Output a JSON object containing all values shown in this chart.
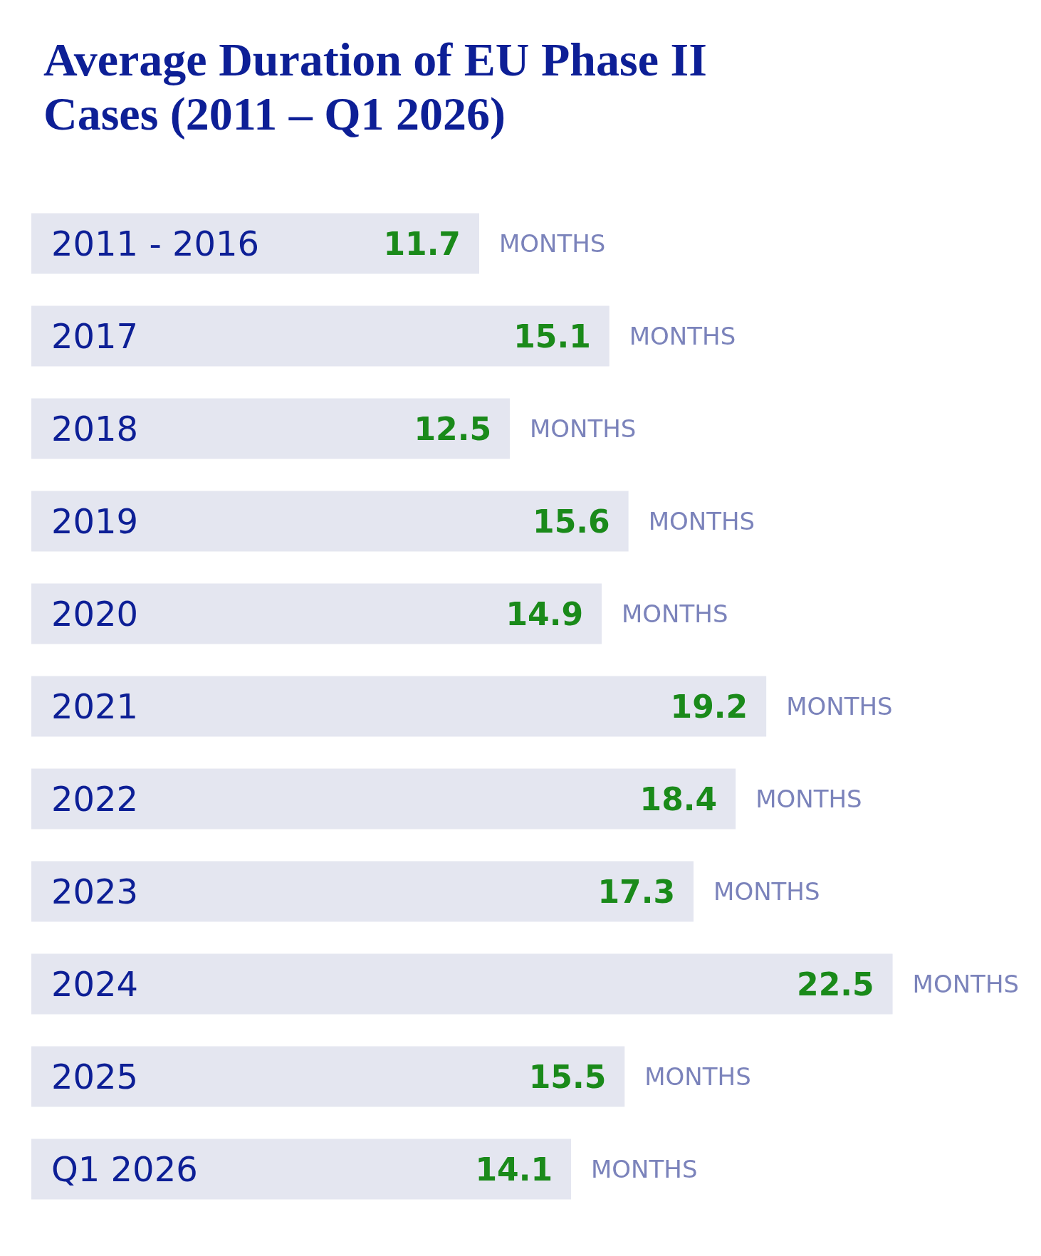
{
  "chart_data": {
    "type": "bar",
    "orientation": "horizontal",
    "title": "Average Duration of EU Phase II Cases (2011 – Q1 2026)",
    "xlabel": "MONTHS",
    "categories": [
      "2011 - 2016",
      "2017",
      "2018",
      "2019",
      "2020",
      "2021",
      "2022",
      "2023",
      "2024",
      "2025",
      "Q1 2026"
    ],
    "values": [
      11.7,
      15.1,
      12.5,
      15.6,
      14.9,
      19.2,
      18.4,
      17.3,
      22.5,
      15.5,
      14.1
    ],
    "color": "#e4e6f0",
    "data_labels": true
  }
}
